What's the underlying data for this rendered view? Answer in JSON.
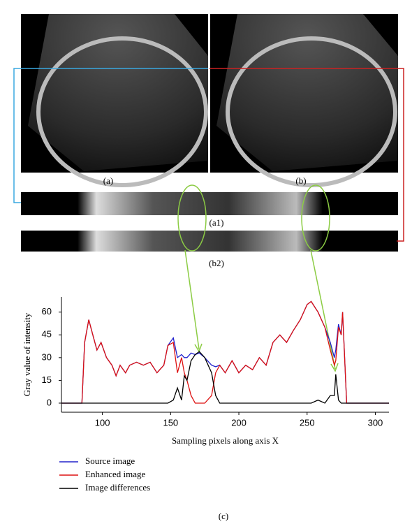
{
  "panels": {
    "a": "(a)",
    "b": "(b)",
    "a1": "(a1)",
    "b2": "(b2)",
    "c": "(c)"
  },
  "chart_data": {
    "type": "line",
    "x_label": "Sampling pixels along axis X",
    "y_label": "Gray value of intensity",
    "x": [
      70,
      85,
      87,
      90,
      93,
      96,
      99,
      103,
      107,
      110,
      113,
      117,
      120,
      125,
      130,
      135,
      140,
      145,
      148,
      152,
      155,
      158,
      160,
      162,
      165,
      168,
      171,
      175,
      180,
      183,
      186,
      190,
      195,
      200,
      205,
      210,
      215,
      220,
      225,
      230,
      235,
      240,
      245,
      250,
      253,
      258,
      263,
      267,
      270,
      271,
      273,
      275,
      276,
      279,
      310
    ],
    "series": [
      {
        "name": "Source image",
        "color": "#2222cc",
        "values": [
          0,
          0,
          40,
          55,
          45,
          35,
          40,
          30,
          25,
          18,
          25,
          20,
          25,
          27,
          25,
          27,
          20,
          25,
          38,
          43,
          30,
          32,
          30,
          30,
          33,
          32,
          33,
          30,
          25,
          24,
          25,
          20,
          28,
          20,
          25,
          22,
          30,
          25,
          40,
          45,
          40,
          48,
          55,
          65,
          67,
          60,
          50,
          40,
          30,
          35,
          52,
          45,
          60,
          0,
          0
        ]
      },
      {
        "name": "Enhanced image",
        "color": "#dd1111",
        "values": [
          0,
          0,
          40,
          55,
          45,
          35,
          40,
          30,
          25,
          18,
          25,
          20,
          25,
          27,
          25,
          27,
          20,
          25,
          38,
          40,
          20,
          30,
          20,
          15,
          5,
          0,
          0,
          0,
          5,
          20,
          25,
          20,
          28,
          20,
          25,
          22,
          30,
          25,
          40,
          45,
          40,
          48,
          55,
          65,
          67,
          60,
          50,
          35,
          25,
          28,
          50,
          45,
          60,
          0,
          0
        ]
      },
      {
        "name": "Image differences",
        "color": "#000000",
        "values": [
          0,
          0,
          0,
          0,
          0,
          0,
          0,
          0,
          0,
          0,
          0,
          0,
          0,
          0,
          0,
          0,
          0,
          0,
          0,
          2,
          10,
          2,
          18,
          15,
          28,
          32,
          34,
          30,
          20,
          5,
          0,
          0,
          0,
          0,
          0,
          0,
          0,
          0,
          0,
          0,
          0,
          0,
          0,
          0,
          0,
          2,
          0,
          5,
          5,
          19,
          2,
          0,
          0,
          0,
          0
        ]
      }
    ],
    "xlim": [
      70,
      310
    ],
    "ylim": [
      -6,
      70
    ],
    "xticks": [
      100,
      150,
      200,
      250,
      300
    ],
    "yticks": [
      0,
      15,
      30,
      45,
      60
    ]
  }
}
